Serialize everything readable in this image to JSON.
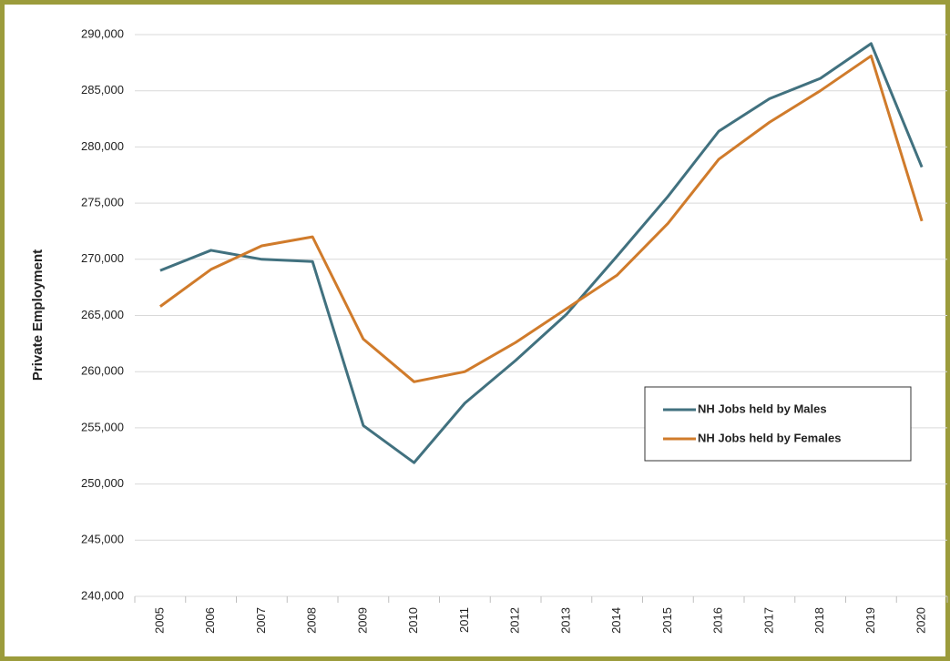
{
  "chart_data": {
    "type": "line",
    "y_label": "Private Employment",
    "categories": [
      "2005",
      "2006",
      "2007",
      "2008",
      "2009",
      "2010",
      "2011",
      "2012",
      "2013",
      "2014",
      "2015",
      "2016",
      "2017",
      "2018",
      "2019",
      "2020"
    ],
    "series": [
      {
        "name": "NH Jobs held by Males",
        "color": "#41717f",
        "values": [
          269000,
          270800,
          270000,
          269800,
          255200,
          251900,
          257200,
          261000,
          265100,
          270300,
          275600,
          281400,
          284300,
          286100,
          289200,
          278200
        ]
      },
      {
        "name": "NH Jobs held by Females",
        "color": "#d07b2b",
        "values": [
          265800,
          269100,
          271200,
          272000,
          262900,
          259100,
          260000,
          262600,
          265600,
          268600,
          273200,
          278900,
          282200,
          285000,
          288100,
          273400
        ]
      }
    ],
    "ylim": [
      240000,
      290000
    ],
    "yticks": [
      {
        "value": 240000,
        "label": "240,000"
      },
      {
        "value": 245000,
        "label": "245,000"
      },
      {
        "value": 250000,
        "label": "250,000"
      },
      {
        "value": 255000,
        "label": "255,000"
      },
      {
        "value": 260000,
        "label": "260,000"
      },
      {
        "value": 265000,
        "label": "265,000"
      },
      {
        "value": 270000,
        "label": "270,000"
      },
      {
        "value": 275000,
        "label": "275,000"
      },
      {
        "value": 280000,
        "label": "280,000"
      },
      {
        "value": 285000,
        "label": "285,000"
      },
      {
        "value": 290000,
        "label": "290,000"
      }
    ],
    "grid": true
  }
}
